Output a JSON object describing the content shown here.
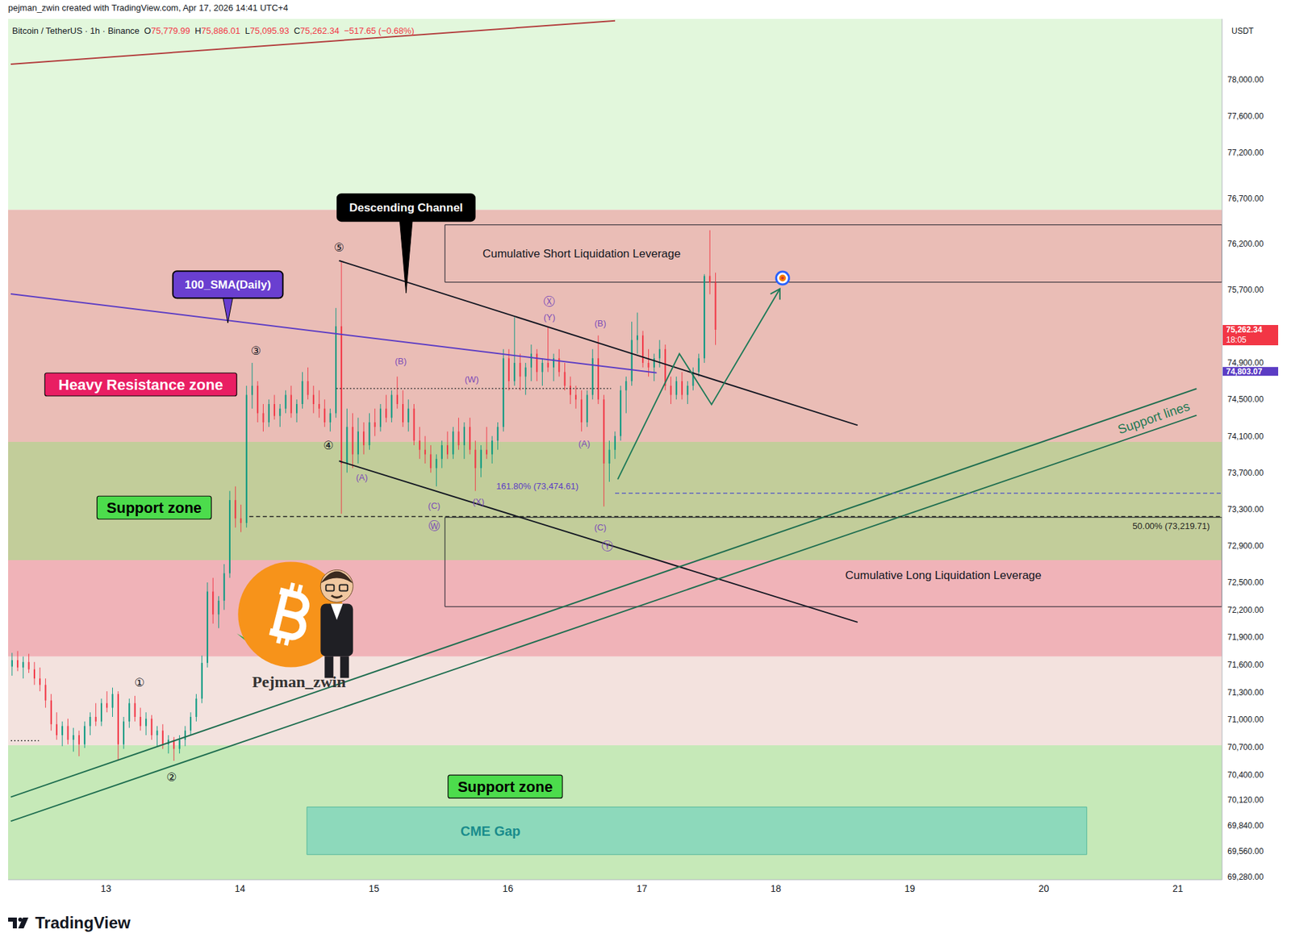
{
  "chart_data": {
    "type": "candlestick",
    "header": "pejman_zwin created with TradingView.com, Apr 17, 2026 14:41 UTC+4",
    "symbol": "Bitcoin / TetherUS · 1h · Binance",
    "ohlc": [
      {
        "key": "O",
        "label": "75,779.99"
      },
      {
        "key": "H",
        "label": "75,886.01"
      },
      {
        "key": "L",
        "label": "75,095.93"
      },
      {
        "key": "C",
        "label": "75,262.34"
      }
    ],
    "change": "−517.65 (−0.68%)",
    "x": [
      12.3,
      12.342,
      12.383,
      12.425,
      12.467,
      12.508,
      12.55,
      12.592,
      12.633,
      12.675,
      12.717,
      12.758,
      12.8,
      12.842,
      12.883,
      12.925,
      12.967,
      13.008,
      13.05,
      13.092,
      13.133,
      13.175,
      13.217,
      13.258,
      13.3,
      13.342,
      13.383,
      13.425,
      13.467,
      13.508,
      13.55,
      13.592,
      13.633,
      13.675,
      13.717,
      13.758,
      13.8,
      13.842,
      13.883,
      13.925,
      13.967,
      14.008,
      14.05,
      14.092,
      14.133,
      14.175,
      14.217,
      14.258,
      14.3,
      14.342,
      14.383,
      14.425,
      14.467,
      14.508,
      14.55,
      14.592,
      14.633,
      14.675,
      14.717,
      14.758,
      14.8,
      14.842,
      14.883,
      14.925,
      14.967,
      15.008,
      15.05,
      15.092,
      15.133,
      15.175,
      15.217,
      15.258,
      15.3,
      15.342,
      15.383,
      15.425,
      15.467,
      15.508,
      15.55,
      15.592,
      15.633,
      15.675,
      15.717,
      15.758,
      15.8,
      15.842,
      15.883,
      15.925,
      15.967,
      16.008,
      16.05,
      16.092,
      16.133,
      16.175,
      16.217,
      16.258,
      16.3,
      16.342,
      16.383,
      16.425,
      16.467,
      16.508,
      16.55,
      16.592,
      16.633,
      16.675,
      16.717,
      16.758,
      16.8,
      16.842,
      16.883,
      16.925,
      16.967,
      17.008,
      17.05,
      17.092,
      17.133,
      17.175,
      17.217,
      17.258,
      17.3,
      17.342,
      17.383,
      17.425,
      17.467,
      17.508,
      17.55
    ],
    "open": [
      71580,
      71650,
      71570,
      71630,
      71550,
      71450,
      71380,
      71210,
      70950,
      70830,
      70930,
      70780,
      70830,
      70730,
      70930,
      71030,
      70980,
      71180,
      71130,
      71280,
      70730,
      70980,
      71180,
      71030,
      70930,
      71010,
      70830,
      70880,
      70730,
      70780,
      70680,
      70780,
      70880,
      71030,
      71230,
      71620,
      72400,
      72150,
      72300,
      72600,
      73400,
      73200,
      73150,
      74550,
      74650,
      74350,
      74250,
      74450,
      74320,
      74400,
      74550,
      74350,
      74450,
      74700,
      74550,
      74450,
      74400,
      74250,
      74350,
      75300,
      73800,
      74200,
      73900,
      74150,
      74000,
      74250,
      74200,
      74400,
      74300,
      74550,
      74450,
      74250,
      74400,
      74050,
      73950,
      73900,
      73750,
      73850,
      74000,
      73900,
      74150,
      74000,
      74200,
      73950,
      73750,
      73950,
      73900,
      74050,
      74200,
      74950,
      74700,
      74900,
      74750,
      74850,
      75000,
      74800,
      74900,
      74850,
      74950,
      74800,
      74650,
      74550,
      74500,
      74250,
      74550,
      74950,
      74500,
      73800,
      73950,
      74100,
      74600,
      74700,
      75150,
      75200,
      74900,
      74850,
      74950,
      75050,
      74650,
      74550,
      74700,
      74550,
      74650,
      74800,
      74950,
      75850,
      75779.99
    ],
    "high": [
      71730,
      71750,
      71690,
      71720,
      71630,
      71570,
      71450,
      71280,
      71080,
      70980,
      71010,
      70910,
      70880,
      70980,
      71080,
      71180,
      71230,
      71310,
      71350,
      71310,
      71030,
      71230,
      71260,
      71130,
      71080,
      71050,
      70930,
      70950,
      70830,
      70810,
      70830,
      70930,
      71080,
      71280,
      71700,
      72500,
      72550,
      72350,
      72700,
      73500,
      73550,
      73350,
      74650,
      74900,
      74700,
      74450,
      74500,
      74550,
      74450,
      74600,
      74650,
      74500,
      74800,
      74850,
      74650,
      74600,
      74500,
      74400,
      75500,
      76000,
      74400,
      74350,
      74300,
      74250,
      74350,
      74400,
      74450,
      74550,
      74600,
      74750,
      74600,
      74500,
      74450,
      74200,
      74100,
      74000,
      73900,
      74050,
      74150,
      74200,
      74300,
      74250,
      74300,
      74050,
      74000,
      74200,
      74100,
      74250,
      75050,
      75050,
      75400,
      75000,
      74900,
      75100,
      75050,
      74950,
      75300,
      75000,
      75050,
      74900,
      74750,
      74650,
      74600,
      74600,
      75050,
      75200,
      74550,
      74050,
      74150,
      74650,
      74750,
      75350,
      75450,
      75250,
      75050,
      75000,
      75150,
      75100,
      74750,
      74750,
      74800,
      74700,
      74850,
      75000,
      75870,
      76350,
      75886.01
    ],
    "low": [
      71480,
      71530,
      71450,
      71510,
      71380,
      71310,
      71130,
      70880,
      70780,
      70710,
      70730,
      70650,
      70600,
      70690,
      70830,
      70930,
      70930,
      71080,
      71030,
      70550,
      70680,
      70910,
      70980,
      70880,
      70830,
      70780,
      70710,
      70680,
      70630,
      70550,
      70630,
      70710,
      70830,
      70980,
      71180,
      71570,
      72050,
      72000,
      72200,
      72550,
      73100,
      73050,
      73100,
      74400,
      74250,
      74150,
      74200,
      74280,
      74200,
      74350,
      74300,
      74250,
      74400,
      74500,
      74350,
      74300,
      74200,
      74150,
      74300,
      73250,
      73700,
      73750,
      73800,
      73900,
      73950,
      74100,
      74150,
      74250,
      74250,
      74400,
      74200,
      74150,
      74000,
      73850,
      73800,
      73700,
      73550,
      73750,
      73850,
      73850,
      73950,
      73850,
      73900,
      73500,
      73650,
      73850,
      73800,
      73950,
      74150,
      74600,
      74650,
      74600,
      74550,
      74700,
      74700,
      74650,
      74800,
      74700,
      74750,
      74600,
      74450,
      74400,
      74150,
      74200,
      74500,
      74450,
      73330,
      73600,
      73850,
      74050,
      74350,
      74650,
      75000,
      74850,
      74750,
      74700,
      74850,
      74600,
      74450,
      74500,
      74500,
      74450,
      74600,
      74750,
      74900,
      75650,
      75095.93
    ],
    "close": [
      71650,
      71570,
      71630,
      71550,
      71450,
      71380,
      71210,
      70950,
      70830,
      70930,
      70780,
      70830,
      70730,
      70930,
      71030,
      70980,
      71180,
      71130,
      71280,
      70730,
      70980,
      71180,
      71030,
      70930,
      71010,
      70830,
      70880,
      70730,
      70780,
      70680,
      70780,
      70880,
      71030,
      71230,
      71620,
      72400,
      72150,
      72300,
      72600,
      73400,
      73200,
      73150,
      74550,
      74650,
      74350,
      74250,
      74450,
      74320,
      74400,
      74550,
      74350,
      74450,
      74700,
      74550,
      74450,
      74400,
      74250,
      74350,
      75300,
      73800,
      74200,
      73900,
      74150,
      74000,
      74250,
      74200,
      74400,
      74300,
      74550,
      74450,
      74250,
      74400,
      74050,
      73950,
      73900,
      73750,
      73850,
      74000,
      73900,
      74150,
      74000,
      74200,
      73950,
      73750,
      73950,
      73900,
      74050,
      74200,
      74950,
      74700,
      74900,
      74750,
      74850,
      75000,
      74800,
      74900,
      74850,
      74950,
      74800,
      74650,
      74550,
      74500,
      74250,
      74550,
      74950,
      74500,
      73800,
      73950,
      74100,
      74600,
      74700,
      75150,
      75200,
      74900,
      74850,
      74950,
      75050,
      74650,
      74550,
      74700,
      74550,
      74650,
      74800,
      74950,
      75850,
      75779.99,
      75262.34
    ],
    "xlim": [
      12.27,
      21.33
    ],
    "xticks": [
      13,
      14,
      15,
      16,
      17,
      18,
      19,
      20,
      21
    ],
    "ylim": [
      69250,
      78660
    ],
    "yticks": [
      {
        "value": 69280,
        "label": "69,280.00"
      },
      {
        "value": 69560,
        "label": "69,560.00"
      },
      {
        "value": 69840,
        "label": "69,840.00"
      },
      {
        "value": 70120,
        "label": "70,120.00"
      },
      {
        "value": 70400,
        "label": "70,400.00"
      },
      {
        "value": 70700,
        "label": "70,700.00"
      },
      {
        "value": 71000,
        "label": "71,000.00"
      },
      {
        "value": 71300,
        "label": "71,300.00"
      },
      {
        "value": 71600,
        "label": "71,600.00"
      },
      {
        "value": 71900,
        "label": "71,900.00"
      },
      {
        "value": 72200,
        "label": "72,200.00"
      },
      {
        "value": 72500,
        "label": "72,500.00"
      },
      {
        "value": 72900,
        "label": "72,900.00"
      },
      {
        "value": 73300,
        "label": "73,300.00"
      },
      {
        "value": 73700,
        "label": "73,700.00"
      },
      {
        "value": 74100,
        "label": "74,100.00"
      },
      {
        "value": 74500,
        "label": "74,500.00"
      },
      {
        "value": 74900,
        "label": "74,900.00"
      },
      {
        "value": 75700,
        "label": "75,700.00"
      },
      {
        "value": 76200,
        "label": "76,200.00"
      },
      {
        "value": 76700,
        "label": "76,700.00"
      },
      {
        "value": 77200,
        "label": "77,200.00"
      },
      {
        "value": 77600,
        "label": "77,600.00"
      },
      {
        "value": 78000,
        "label": "78,000.00"
      }
    ],
    "y_axis_label": "USDT",
    "grid": false,
    "price_labels": [
      {
        "value": 75262.34,
        "label": "75,262.34",
        "sub": "18:05",
        "color": "#f23645"
      },
      {
        "value": 74803.07,
        "label": "74,803.07",
        "color": "#5b3cc4"
      }
    ],
    "zones": [
      {
        "y": [
          76573,
          78660
        ],
        "color": "#e2f7dc"
      },
      {
        "y": [
          74036,
          76573
        ],
        "color": "#eabdb6",
        "label": {
          "text": "Heavy Resistance zone",
          "at": [
            13.26,
            74664
          ],
          "color": "#ffffff",
          "fill": "#e91e63"
        }
      },
      {
        "y": [
          72743,
          74036
        ],
        "color": "#c2cd9a",
        "label": {
          "text": "Support zone",
          "at": [
            13.36,
            73318
          ],
          "color": "#000000",
          "fill": "#4cdc4c"
        }
      },
      {
        "y": [
          71690,
          72743
        ],
        "color": "#f0b3b8"
      },
      {
        "y": [
          70720,
          71690
        ],
        "color": "#f3e2de"
      },
      {
        "y": [
          69250,
          70720
        ],
        "color": "#c6e9b8",
        "label": {
          "text": "Support zone",
          "at": [
            15.98,
            70268
          ],
          "color": "#000000",
          "fill": "#4cdc4c"
        }
      },
      {
        "x": [
          14.5,
          20.32
        ],
        "y": [
          69525,
          70045
        ],
        "color": "#8dd9bb",
        "label": {
          "text": "CME Gap",
          "at": [
            15.87,
            69785
          ],
          "color": "#1a8c8c"
        }
      }
    ],
    "boxes": [
      {
        "x": [
          15.53,
          21.33
        ],
        "y": [
          75782,
          76409
        ],
        "label": {
          "text": "Cumulative Short Liquidation Leverage",
          "at": [
            16.55,
            76090
          ],
          "color": "#131722"
        }
      },
      {
        "x": [
          15.53,
          21.33
        ],
        "y": [
          72235,
          73211
        ],
        "label": {
          "text": "Cumulative Long Liquidation Leverage",
          "at": [
            19.25,
            72580
          ],
          "color": "#131722"
        }
      }
    ],
    "lines": [
      {
        "points": [
          [
            12.29,
            78166
          ],
          [
            16.8,
            78640
          ]
        ],
        "color": "#b23b3b",
        "line_style": "solid"
      },
      {
        "points": [
          [
            12.29,
            75654
          ],
          [
            17.11,
            74791
          ]
        ],
        "color": "#5b3cc4",
        "line_style": "solid"
      },
      {
        "points": [
          [
            14.74,
            76018
          ],
          [
            18.61,
            74218
          ]
        ],
        "color": "#131722",
        "line_style": "solid"
      },
      {
        "points": [
          [
            14.74,
            73827
          ],
          [
            18.61,
            72065
          ]
        ],
        "color": "#131722",
        "line_style": "solid"
      },
      {
        "points": [
          [
            12.29,
            70154
          ],
          [
            21.14,
            74618
          ]
        ],
        "color": "#1f6e50",
        "line_style": "solid"
      },
      {
        "points": [
          [
            12.29,
            69890
          ],
          [
            21.14,
            74327
          ]
        ],
        "color": "#1f6e50",
        "line_style": "solid"
      },
      {
        "points": [
          [
            14.72,
            74620
          ],
          [
            16.77,
            74620
          ]
        ],
        "color": "#333333",
        "line_style": "dotted"
      },
      {
        "points": [
          [
            12.29,
            70770
          ],
          [
            12.5,
            70770
          ]
        ],
        "color": "#333333",
        "line_style": "dotted"
      },
      {
        "points": [
          [
            16.8,
            73474.61
          ],
          [
            21.33,
            73474.61
          ]
        ],
        "color": "#5c5fc4",
        "line_style": "dashed",
        "label": {
          "text": "161.80% (73,474.61)",
          "at": [
            16.22,
            73555
          ],
          "color": "#5b3cc4"
        }
      },
      {
        "points": [
          [
            14.07,
            73219.71
          ],
          [
            21.33,
            73219.71
          ]
        ],
        "color": "#222222",
        "line_style": "dashed",
        "label": {
          "text": "50.00% (73,219.71)",
          "at": [
            20.95,
            73113
          ],
          "color": "#222222"
        }
      }
    ],
    "callouts": [
      {
        "text": "Descending Channel",
        "at": [
          15.24,
          76598
        ],
        "tip": [
          15.24,
          75664
        ],
        "color": "#ffffff",
        "fill": "#000000"
      },
      {
        "text": "100_SMA(Daily)",
        "at": [
          13.91,
          75755
        ],
        "tip": [
          13.91,
          75336
        ],
        "color": "#ffffff",
        "fill": "#6a3fd0"
      }
    ],
    "projection": {
      "x": [
        16.82,
        17.28,
        17.52,
        18.03
      ],
      "values": [
        73627,
        75000,
        74445,
        75709
      ],
      "color": "#1e7a58"
    },
    "target": [
      18.05,
      75827
    ],
    "waves": [
      {
        "text": "①",
        "at": [
          13.25,
          71406
        ],
        "color": "#131722"
      },
      {
        "text": "②",
        "at": [
          13.49,
          70370
        ],
        "color": "#131722"
      },
      {
        "text": "③",
        "at": [
          14.12,
          75036
        ],
        "color": "#131722"
      },
      {
        "text": "④",
        "at": [
          14.66,
          74000
        ],
        "color": "#131722"
      },
      {
        "text": "⑤",
        "at": [
          14.74,
          76163
        ],
        "color": "#131722"
      },
      {
        "text": "(A)",
        "at": [
          14.91,
          73646
        ],
        "color": "#7b4bb8"
      },
      {
        "text": "(B)",
        "at": [
          15.2,
          74918
        ],
        "color": "#7b4bb8"
      },
      {
        "text": "(C)",
        "at": [
          15.45,
          73340
        ],
        "color": "#7b4bb8"
      },
      {
        "text": "Ⓦ",
        "at": [
          15.45,
          73120
        ],
        "color": "#7b4bb8"
      },
      {
        "text": "(W)",
        "at": [
          15.73,
          74720
        ],
        "color": "#7b4bb8"
      },
      {
        "text": "(X)",
        "at": [
          15.78,
          73380
        ],
        "color": "#7b4bb8"
      },
      {
        "text": "Ⓧ",
        "at": [
          16.31,
          75570
        ],
        "color": "#7b4bb8"
      },
      {
        "text": "(Y)",
        "at": [
          16.31,
          75400
        ],
        "color": "#7b4bb8"
      },
      {
        "text": "(A)",
        "at": [
          16.57,
          74020
        ],
        "color": "#7b4bb8"
      },
      {
        "text": "(B)",
        "at": [
          16.69,
          75330
        ],
        "color": "#7b4bb8"
      },
      {
        "text": "(C)",
        "at": [
          16.69,
          73100
        ],
        "color": "#7b4bb8"
      },
      {
        "text": "Ⓨ",
        "at": [
          16.74,
          72900
        ],
        "color": "#7b4bb8"
      }
    ],
    "annotations": [
      {
        "text": "Support lines",
        "at": [
          20.82,
          74300
        ],
        "color": "#1f7a55"
      }
    ],
    "watermark": {
      "text": "Pejman_zwin",
      "at": [
        14.38,
        72150
      ]
    },
    "footer": "TradingView"
  }
}
